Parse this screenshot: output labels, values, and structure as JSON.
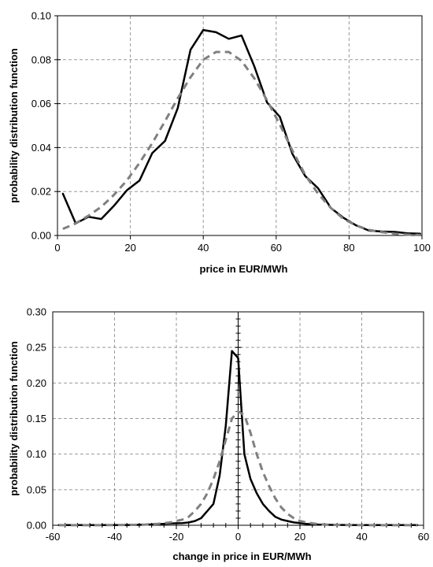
{
  "chart_data": [
    {
      "type": "line",
      "xlabel": "price in EUR/MWh",
      "ylabel": "probability distribution function",
      "xlim": [
        0,
        100
      ],
      "ylim": [
        0,
        0.1
      ],
      "xticks": [
        0,
        20,
        40,
        60,
        80,
        100
      ],
      "xtick_labels": [
        "0",
        "20",
        "40",
        "60",
        "80",
        "100"
      ],
      "yticks": [
        0,
        0.02,
        0.04,
        0.06,
        0.08,
        0.1
      ],
      "ytick_labels": [
        "0.00",
        "0.02",
        "0.04",
        "0.06",
        "0.08",
        "0.10"
      ],
      "grid": true,
      "series": [
        {
          "style": "solid",
          "color": "#000000",
          "x": [
            1.5,
            5,
            8.5,
            12,
            15.5,
            19,
            22.5,
            26,
            29.5,
            33,
            36.5,
            40,
            43.5,
            47,
            50.5,
            54,
            57.5,
            61,
            64.5,
            68,
            71.5,
            75,
            78.5,
            82,
            85.5,
            89,
            92.5,
            96,
            99.5
          ],
          "y": [
            0.019,
            0.0055,
            0.0085,
            0.0075,
            0.0135,
            0.0205,
            0.025,
            0.0375,
            0.043,
            0.058,
            0.0845,
            0.0935,
            0.0925,
            0.0895,
            0.091,
            0.077,
            0.0605,
            0.054,
            0.037,
            0.027,
            0.0215,
            0.0125,
            0.008,
            0.0045,
            0.0022,
            0.0018,
            0.0016,
            0.001,
            0.0008
          ]
        },
        {
          "style": "dashed",
          "color": "#808080",
          "x": [
            1.5,
            5,
            8.5,
            12,
            15.5,
            19,
            22.5,
            26,
            29.5,
            33,
            36.5,
            40,
            43.5,
            47,
            50.5,
            54,
            57.5,
            61,
            64.5,
            68,
            71.5,
            75,
            78.5,
            82,
            85.5,
            89,
            92.5,
            96,
            99.5
          ],
          "y": [
            0.003,
            0.0055,
            0.009,
            0.013,
            0.0185,
            0.025,
            0.033,
            0.042,
            0.052,
            0.0625,
            0.072,
            0.08,
            0.0835,
            0.0835,
            0.0795,
            0.0715,
            0.0615,
            0.0505,
            0.0385,
            0.0275,
            0.019,
            0.0125,
            0.0075,
            0.0045,
            0.0025,
            0.0015,
            0.0008,
            0.0004,
            0.0002
          ]
        }
      ]
    },
    {
      "type": "line",
      "xlabel": "change in price in EUR/MWh",
      "ylabel": "probability distribution function",
      "xlim": [
        -60,
        60
      ],
      "ylim": [
        0,
        0.3
      ],
      "xticks": [
        -60,
        -40,
        -20,
        0,
        20,
        40,
        60
      ],
      "xtick_labels": [
        "-60",
        "-40",
        "-20",
        "0",
        "20",
        "40",
        "60"
      ],
      "yticks": [
        0,
        0.05,
        0.1,
        0.15,
        0.2,
        0.25,
        0.3
      ],
      "ytick_labels": [
        "0.00",
        "0.05",
        "0.10",
        "0.15",
        "0.20",
        "0.25",
        "0.30"
      ],
      "grid": true,
      "series": [
        {
          "style": "solid",
          "color": "#000000",
          "x": [
            -58,
            -54,
            -50,
            -46,
            -42,
            -38,
            -34,
            -30,
            -26,
            -22,
            -18,
            -16,
            -14,
            -12,
            -10,
            -8,
            -6,
            -4,
            -2,
            0,
            2,
            4,
            6,
            8,
            10,
            12,
            14,
            16,
            18,
            20,
            22,
            26,
            30,
            34,
            38,
            42,
            46,
            50,
            54,
            58
          ],
          "y": [
            0.0002,
            0.0002,
            0.0002,
            0.0002,
            0.0002,
            0.0003,
            0.0004,
            0.0008,
            0.0015,
            0.0025,
            0.003,
            0.004,
            0.006,
            0.01,
            0.02,
            0.03,
            0.07,
            0.14,
            0.245,
            0.235,
            0.1,
            0.065,
            0.045,
            0.03,
            0.02,
            0.012,
            0.008,
            0.006,
            0.004,
            0.003,
            0.002,
            0.001,
            0.0006,
            0.0004,
            0.0003,
            0.0002,
            0.0002,
            0.0002,
            0.0002,
            0.0002
          ]
        },
        {
          "style": "dashed",
          "color": "#808080",
          "x": [
            -58,
            -50,
            -42,
            -34,
            -30,
            -26,
            -22,
            -18,
            -16,
            -14,
            -12,
            -10,
            -8,
            -6,
            -4,
            -2,
            0,
            2,
            4,
            6,
            8,
            10,
            12,
            14,
            16,
            18,
            20,
            22,
            26,
            30,
            34,
            42,
            50,
            58
          ],
          "y": [
            0.0001,
            0.0001,
            0.0002,
            0.0005,
            0.001,
            0.002,
            0.004,
            0.008,
            0.012,
            0.02,
            0.03,
            0.045,
            0.065,
            0.09,
            0.12,
            0.15,
            0.16,
            0.155,
            0.13,
            0.1,
            0.075,
            0.055,
            0.038,
            0.025,
            0.016,
            0.01,
            0.006,
            0.004,
            0.0015,
            0.0006,
            0.0003,
            0.0001,
            0.0001,
            0.0001
          ]
        }
      ]
    }
  ]
}
